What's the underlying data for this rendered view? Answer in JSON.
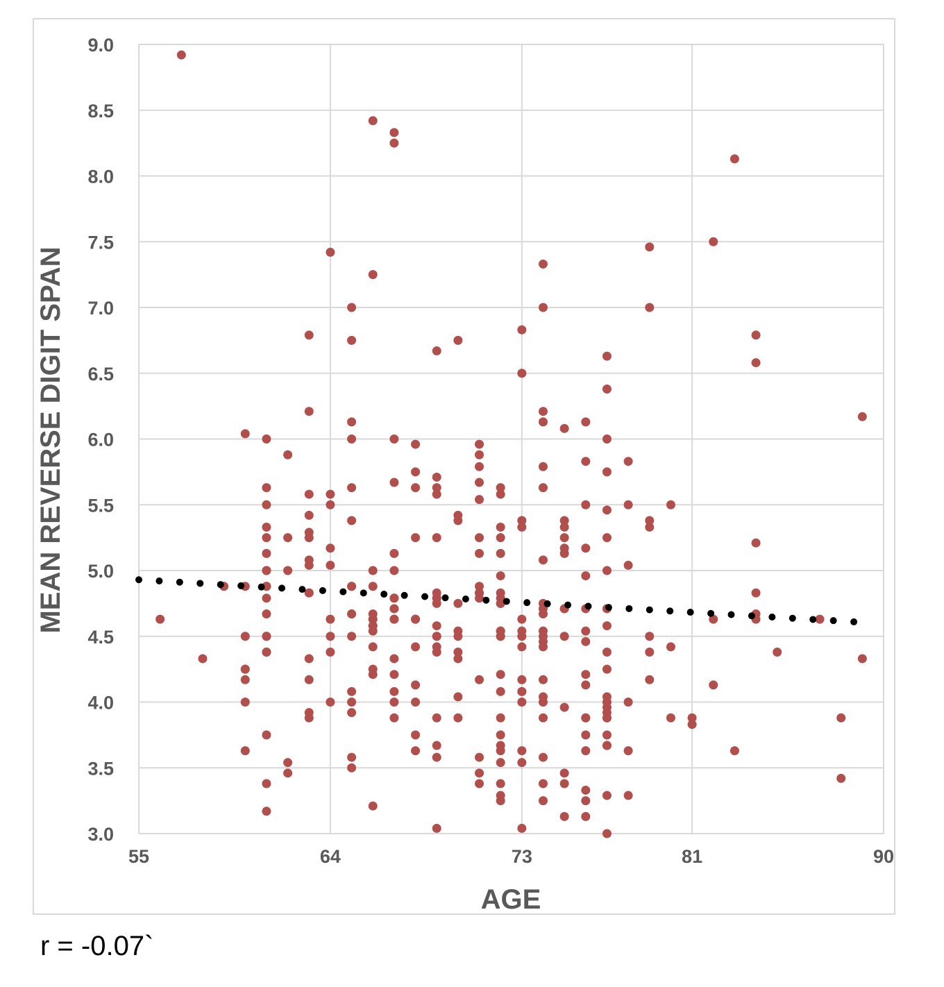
{
  "chart_data": {
    "type": "scatter",
    "title": "",
    "xlabel": "AGE",
    "ylabel": "MEAN REVERSE DIGIT SPAN",
    "xlim": [
      55,
      90
    ],
    "ylim": [
      3.0,
      9.0
    ],
    "x_ticks": [
      55,
      64,
      73,
      81,
      90
    ],
    "x_tick_labels": [
      "55",
      "64",
      "73",
      "81",
      "90"
    ],
    "y_ticks": [
      3.0,
      3.5,
      4.0,
      4.5,
      5.0,
      5.5,
      6.0,
      6.5,
      7.0,
      7.5,
      8.0,
      8.5,
      9.0
    ],
    "y_tick_labels": [
      "3.0",
      "3.5",
      "4.0",
      "4.5",
      "5.0",
      "5.5",
      "6.0",
      "6.5",
      "7.0",
      "7.5",
      "8.0",
      "8.5",
      "9.0"
    ],
    "grid": true,
    "legend": "none",
    "colors": {
      "points": "#b14f4d",
      "trendline": "#000000",
      "grid": "#d9d9d9",
      "axis_text": "#595959"
    },
    "trendline": {
      "style": "dotted",
      "x": [
        55,
        88.6
      ],
      "y": [
        4.93,
        4.61
      ]
    },
    "series": [
      {
        "x": [
          57,
          56,
          58,
          59,
          60,
          60,
          60,
          60,
          60,
          60,
          60,
          60,
          61,
          61,
          61,
          61,
          61,
          61,
          61,
          61,
          61,
          61,
          61,
          61,
          61,
          61,
          61,
          61,
          61,
          61,
          61,
          62,
          62,
          62,
          62,
          62,
          63,
          63,
          63,
          63,
          63,
          63,
          63,
          63,
          63,
          63,
          63,
          63,
          63,
          63,
          64,
          64,
          64,
          64,
          64,
          64,
          64,
          64,
          64,
          65,
          65,
          65,
          65,
          65,
          65,
          65,
          65,
          65,
          65,
          65,
          65,
          65,
          65,
          65,
          65,
          66,
          66,
          66,
          66,
          66,
          66,
          66,
          66,
          66,
          66,
          66,
          66,
          66,
          66,
          67,
          67,
          67,
          67,
          67,
          67,
          67,
          67,
          67,
          67,
          67,
          67,
          67,
          67,
          67,
          67,
          67,
          68,
          68,
          68,
          68,
          68,
          68,
          68,
          68,
          68,
          68,
          68,
          69,
          69,
          69,
          69,
          69,
          69,
          69,
          69,
          69,
          69,
          69,
          69,
          69,
          69,
          69,
          69,
          69,
          69,
          70,
          70,
          70,
          70,
          70,
          70,
          70,
          70,
          70,
          70,
          71,
          71,
          71,
          71,
          71,
          71,
          71,
          71,
          71,
          71,
          71,
          71,
          71,
          71,
          71,
          72,
          72,
          72,
          72,
          72,
          72,
          72,
          72,
          72,
          72,
          72,
          72,
          72,
          72,
          72,
          72,
          72,
          72,
          72,
          72,
          72,
          72,
          72,
          72,
          73,
          73,
          73,
          73,
          73,
          73,
          73,
          73,
          73,
          73,
          73,
          73,
          73,
          73,
          73,
          74,
          74,
          74,
          74,
          74,
          74,
          74,
          74,
          74,
          74,
          74,
          74,
          74,
          74,
          74,
          74,
          74,
          74,
          74,
          74,
          74,
          75,
          75,
          75,
          75,
          75,
          75,
          75,
          75,
          75,
          75,
          75,
          75,
          75,
          76,
          76,
          76,
          76,
          76,
          76,
          76,
          76,
          76,
          76,
          76,
          76,
          76,
          76,
          76,
          76,
          76,
          77,
          77,
          77,
          77,
          77,
          77,
          77,
          77,
          77,
          77,
          77,
          77,
          77,
          77,
          77,
          77,
          77,
          77,
          77,
          77,
          77,
          77,
          77,
          78,
          78,
          78,
          78,
          78,
          78,
          79,
          79,
          79,
          79,
          79,
          79,
          79,
          80,
          80,
          80,
          81,
          81,
          82,
          82,
          82,
          83,
          83,
          84,
          84,
          84,
          84,
          84,
          84,
          85,
          87,
          88,
          88,
          89,
          89
        ],
        "y": [
          8.92,
          4.63,
          4.33,
          4.88,
          6.04,
          4.5,
          4.25,
          4.17,
          4.0,
          3.63,
          4.88,
          4.25,
          6.0,
          5.63,
          5.5,
          5.33,
          5.25,
          5.13,
          5.0,
          4.88,
          4.79,
          4.67,
          4.5,
          4.38,
          4.38,
          3.75,
          3.38,
          3.17,
          4.88,
          5.0,
          4.5,
          5.88,
          5.25,
          5.0,
          3.54,
          3.46,
          6.79,
          6.21,
          5.58,
          5.42,
          5.29,
          5.25,
          5.08,
          5.04,
          4.83,
          4.33,
          4.17,
          3.92,
          3.88,
          4.83,
          7.42,
          5.58,
          5.5,
          5.17,
          5.04,
          4.63,
          4.5,
          4.38,
          4.0,
          7.0,
          6.75,
          6.13,
          6.0,
          5.63,
          5.38,
          4.88,
          4.67,
          4.5,
          4.08,
          4.0,
          3.92,
          3.58,
          3.5,
          4.67,
          4.88,
          8.42,
          7.25,
          5.0,
          4.88,
          4.67,
          4.63,
          4.58,
          4.54,
          4.42,
          4.25,
          4.21,
          3.21,
          4.63,
          4.58,
          8.33,
          8.25,
          6.0,
          5.67,
          5.13,
          5.0,
          4.79,
          4.71,
          4.63,
          4.33,
          4.21,
          4.08,
          4.0,
          3.88,
          4.79,
          4.71,
          4.63,
          5.96,
          5.75,
          5.63,
          5.25,
          4.63,
          4.42,
          4.13,
          4.0,
          3.75,
          3.63,
          4.63,
          6.67,
          5.71,
          5.63,
          5.58,
          5.25,
          4.83,
          4.79,
          4.75,
          4.58,
          4.5,
          4.42,
          4.38,
          3.88,
          3.67,
          3.58,
          3.04,
          4.79,
          4.5,
          6.75,
          5.42,
          5.38,
          4.75,
          4.54,
          4.5,
          4.38,
          4.33,
          4.04,
          3.88,
          5.96,
          5.88,
          5.79,
          5.67,
          5.54,
          5.25,
          5.13,
          4.88,
          4.83,
          4.17,
          3.58,
          3.46,
          3.38,
          4.83,
          4.79,
          5.63,
          5.58,
          5.33,
          5.25,
          5.13,
          4.96,
          4.83,
          4.75,
          4.54,
          4.5,
          4.21,
          4.08,
          3.88,
          3.75,
          3.67,
          3.54,
          3.38,
          3.29,
          3.25,
          3.63,
          4.5,
          4.54,
          4.75,
          4.79,
          6.83,
          6.5,
          5.38,
          5.33,
          4.63,
          4.54,
          4.5,
          4.42,
          4.17,
          4.08,
          4.0,
          3.63,
          3.54,
          3.04,
          4.08,
          7.33,
          7.0,
          6.21,
          6.13,
          5.79,
          5.63,
          5.08,
          4.75,
          4.67,
          4.54,
          4.5,
          4.42,
          4.17,
          4.04,
          4.0,
          3.88,
          3.58,
          3.38,
          3.25,
          4.71,
          4.46,
          6.08,
          5.38,
          5.33,
          5.25,
          5.17,
          5.13,
          4.71,
          4.5,
          3.96,
          3.46,
          3.38,
          3.13,
          4.71,
          6.13,
          5.83,
          5.5,
          5.17,
          4.96,
          4.54,
          4.46,
          4.21,
          4.13,
          3.88,
          3.75,
          3.63,
          3.33,
          3.25,
          3.13,
          4.71,
          3.88,
          6.63,
          6.38,
          6.0,
          5.75,
          5.46,
          5.25,
          5.0,
          4.71,
          4.58,
          4.38,
          4.25,
          4.04,
          3.96,
          3.88,
          3.75,
          3.67,
          3.29,
          3.0,
          4.0,
          3.92,
          4.71,
          3.67,
          3.88,
          5.83,
          5.5,
          5.04,
          4.0,
          3.63,
          3.29,
          7.46,
          7.0,
          5.38,
          5.33,
          4.5,
          4.38,
          4.17,
          5.5,
          4.42,
          3.88,
          3.88,
          3.83,
          7.5,
          4.63,
          4.13,
          8.13,
          3.63,
          6.79,
          6.58,
          5.21,
          4.83,
          4.67,
          4.63,
          4.38,
          4.63,
          3.88,
          3.42,
          6.17,
          4.33
        ]
      }
    ]
  },
  "annotation": {
    "text": "r = -0.07`"
  }
}
